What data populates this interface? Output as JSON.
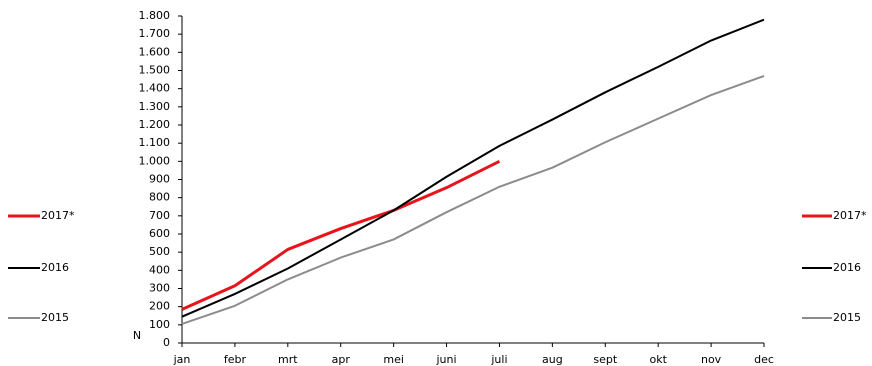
{
  "chart_data": {
    "type": "line",
    "y_label": "N",
    "categories": [
      "jan",
      "febr",
      "mrt",
      "apr",
      "mei",
      "juni",
      "juli",
      "aug",
      "sept",
      "okt",
      "nov",
      "dec"
    ],
    "series": [
      {
        "name": "2017*",
        "color": "#e8141b",
        "values": [
          185,
          315,
          515,
          630,
          730,
          855,
          1000,
          null,
          null,
          null,
          null,
          null
        ]
      },
      {
        "name": "2016",
        "color": "#000000",
        "values": [
          145,
          270,
          410,
          570,
          730,
          915,
          1085,
          1230,
          1380,
          1520,
          1665,
          1780
        ]
      },
      {
        "name": "2015",
        "color": "#8c8c8c",
        "values": [
          105,
          205,
          350,
          470,
          570,
          720,
          860,
          965,
          1105,
          1235,
          1365,
          1470
        ]
      }
    ],
    "ylim": [
      0,
      1800
    ],
    "yticks": [
      0,
      100,
      200,
      300,
      400,
      500,
      600,
      700,
      800,
      900,
      {
        "value": 1000,
        "label": "1.000"
      },
      {
        "value": 1100,
        "label": "1.100"
      },
      {
        "value": 1200,
        "label": "1.200"
      },
      {
        "value": 1300,
        "label": "1.300"
      },
      {
        "value": 1400,
        "label": "1.400"
      },
      {
        "value": 1500,
        "label": "1.500"
      },
      {
        "value": 1600,
        "label": "1.600"
      },
      {
        "value": 1700,
        "label": "1.700"
      },
      {
        "value": 1800,
        "label": "1.800"
      }
    ],
    "grid": false
  }
}
